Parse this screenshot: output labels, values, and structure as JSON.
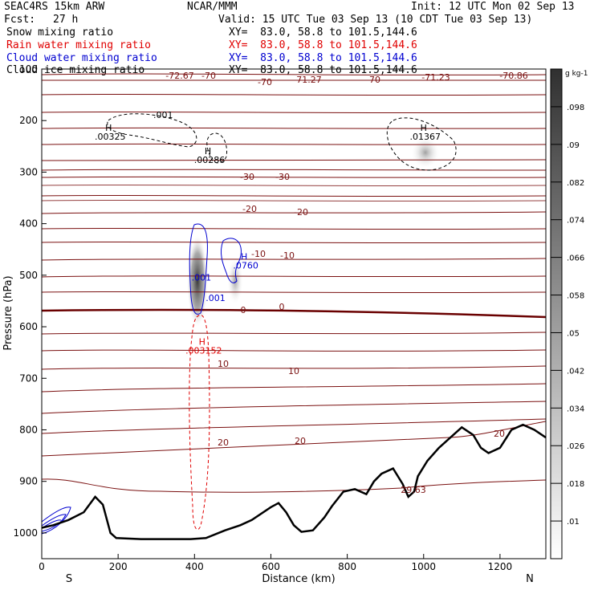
{
  "header": {
    "model": "SEAC4RS 15km ARW",
    "org": "NCAR/MMM",
    "init": "Init: 12 UTC Mon 02 Sep 13",
    "fcst_label": "Fcst:",
    "fcst_value": "27 h",
    "valid": "Valid: 15 UTC Tue 03 Sep 13 (10 CDT Tue 03 Sep 13)"
  },
  "legend": [
    {
      "name": "Snow mixing ratio",
      "xy": "XY=  83.0, 58.8 to 101.5,144.6",
      "color": "#000000"
    },
    {
      "name": "Rain water mixing ratio",
      "xy": "XY=  83.0, 58.8 to 101.5,144.6",
      "color": "#e00000"
    },
    {
      "name": "Cloud water mixing ratio",
      "xy": "XY=  83.0, 58.8 to 101.5,144.6",
      "color": "#0000d0"
    },
    {
      "name": "Cloud ice mixing ratio",
      "xy": "XY=  83.0, 58.8 to 101.5,144.6",
      "color": "#000000"
    }
  ],
  "chart_data": {
    "type": "cross-section contour",
    "xlabel": "Distance (km)",
    "ylabel": "Pressure (hPa)",
    "xlim": [
      0,
      1320
    ],
    "ylim": [
      1050,
      100
    ],
    "x_ticks": [
      0,
      200,
      400,
      600,
      800,
      1000,
      1200
    ],
    "y_ticks": [
      100,
      200,
      300,
      400,
      500,
      600,
      700,
      800,
      900,
      1000
    ],
    "x_end_labels": {
      "left": "S",
      "right": "N"
    },
    "colorbar": {
      "unit": "g kg-1",
      "ticks": [
        ".01",
        ".018",
        ".026",
        ".034",
        ".042",
        ".05",
        ".058",
        ".066",
        ".074",
        ".082",
        ".09",
        ".098"
      ]
    },
    "temperature_labels": [
      "-70",
      "-72.67",
      "-70",
      "-71.27",
      "-70",
      "-71.23",
      "-70.86",
      "-30",
      "-30",
      "-20",
      "-20",
      "-10",
      "-10",
      "0",
      "0",
      "10",
      "10",
      "20",
      "20",
      "20",
      "29.63"
    ],
    "mixing_ratio_labels": [
      {
        "text": "H",
        "value": ".00325",
        "x_km": 175,
        "p": 220,
        "color": "#000000"
      },
      {
        "text": ".001",
        "x_km": 318,
        "p": 195,
        "color": "#000000"
      },
      {
        "text": "H",
        "value": ".00286",
        "x_km": 435,
        "p": 265,
        "color": "#000000"
      },
      {
        "text": "H",
        "value": ".01367",
        "x_km": 1000,
        "p": 220,
        "color": "#000000"
      },
      {
        "text": "H",
        "value": ".0760",
        "x_km": 530,
        "p": 470,
        "color": "#0000d0"
      },
      {
        "text": ".001",
        "x_km": 418,
        "p": 510,
        "color": "#0000d0"
      },
      {
        "text": ".001",
        "x_km": 455,
        "p": 550,
        "color": "#0000d0"
      },
      {
        "text": "H",
        "value": ".003152",
        "x_km": 420,
        "p": 635,
        "color": "#e00000"
      }
    ],
    "terrain_pressure": [
      [
        0,
        990
      ],
      [
        30,
        985
      ],
      [
        70,
        975
      ],
      [
        110,
        960
      ],
      [
        140,
        930
      ],
      [
        160,
        945
      ],
      [
        180,
        1000
      ],
      [
        195,
        1010
      ],
      [
        260,
        1012
      ],
      [
        330,
        1012
      ],
      [
        390,
        1012
      ],
      [
        430,
        1010
      ],
      [
        480,
        995
      ],
      [
        520,
        985
      ],
      [
        550,
        975
      ],
      [
        600,
        950
      ],
      [
        620,
        942
      ],
      [
        640,
        960
      ],
      [
        660,
        985
      ],
      [
        680,
        998
      ],
      [
        710,
        995
      ],
      [
        740,
        970
      ],
      [
        760,
        948
      ],
      [
        790,
        920
      ],
      [
        820,
        915
      ],
      [
        850,
        925
      ],
      [
        870,
        900
      ],
      [
        890,
        885
      ],
      [
        920,
        875
      ],
      [
        945,
        905
      ],
      [
        960,
        930
      ],
      [
        975,
        920
      ],
      [
        985,
        890
      ],
      [
        1010,
        860
      ],
      [
        1040,
        835
      ],
      [
        1070,
        815
      ],
      [
        1100,
        795
      ],
      [
        1130,
        810
      ],
      [
        1150,
        835
      ],
      [
        1170,
        845
      ],
      [
        1200,
        835
      ],
      [
        1230,
        800
      ],
      [
        1260,
        790
      ],
      [
        1290,
        800
      ],
      [
        1320,
        815
      ]
    ]
  }
}
